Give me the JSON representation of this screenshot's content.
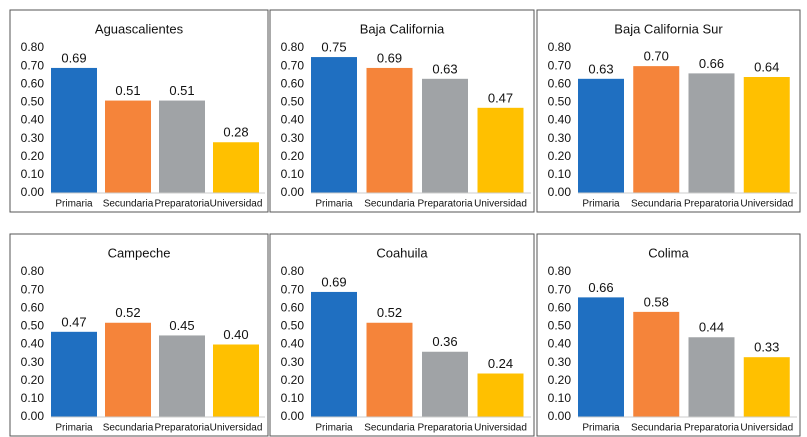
{
  "chart_data": [
    {
      "type": "bar",
      "title": "Aguascalientes",
      "categories": [
        "Primaria",
        "Secundaria",
        "Preparatoria",
        "Universidad"
      ],
      "values": [
        0.69,
        0.51,
        0.51,
        0.28
      ],
      "value_labels": [
        "0.69",
        "0.51",
        "0.51",
        "0.28"
      ],
      "colors": [
        "#1f6fc1",
        "#f5843a",
        "#a0a3a6",
        "#ffc000"
      ],
      "ylim": [
        0,
        0.8
      ],
      "yticks": [
        {
          "value": 0,
          "label": "0.00"
        },
        {
          "value": 0.1,
          "label": "0.10"
        },
        {
          "value": 0.2,
          "label": "0.20"
        },
        {
          "value": 0.3,
          "label": "0.30"
        },
        {
          "value": 0.4,
          "label": "0.40"
        },
        {
          "value": 0.5,
          "label": "0.50"
        },
        {
          "value": 0.6,
          "label": "0.60"
        },
        {
          "value": 0.7,
          "label": "0.70"
        },
        {
          "value": 0.8,
          "label": "0.80"
        }
      ]
    },
    {
      "type": "bar",
      "title": "Baja California",
      "categories": [
        "Primaria",
        "Secundaria",
        "Preparatoria",
        "Universidad"
      ],
      "values": [
        0.75,
        0.69,
        0.63,
        0.47
      ],
      "value_labels": [
        "0.75",
        "0.69",
        "0.63",
        "0.47"
      ],
      "colors": [
        "#1f6fc1",
        "#f5843a",
        "#a0a3a6",
        "#ffc000"
      ],
      "ylim": [
        0,
        0.8
      ],
      "yticks": [
        {
          "value": 0,
          "label": "0.00"
        },
        {
          "value": 0.1,
          "label": "0.10"
        },
        {
          "value": 0.2,
          "label": "0.20"
        },
        {
          "value": 0.3,
          "label": "0.30"
        },
        {
          "value": 0.4,
          "label": "0.40"
        },
        {
          "value": 0.5,
          "label": "0.50"
        },
        {
          "value": 0.6,
          "label": "0.60"
        },
        {
          "value": 0.7,
          "label": "0.70"
        },
        {
          "value": 0.8,
          "label": "0.80"
        }
      ]
    },
    {
      "type": "bar",
      "title": "Baja California Sur",
      "categories": [
        "Primaria",
        "Secundaria",
        "Preparatoria",
        "Universidad"
      ],
      "values": [
        0.63,
        0.7,
        0.66,
        0.64
      ],
      "value_labels": [
        "0.63",
        "0.70",
        "0.66",
        "0.64"
      ],
      "colors": [
        "#1f6fc1",
        "#f5843a",
        "#a0a3a6",
        "#ffc000"
      ],
      "ylim": [
        0,
        0.8
      ],
      "yticks": [
        {
          "value": 0,
          "label": "0.00"
        },
        {
          "value": 0.1,
          "label": "0.10"
        },
        {
          "value": 0.2,
          "label": "0.20"
        },
        {
          "value": 0.3,
          "label": "0.30"
        },
        {
          "value": 0.4,
          "label": "0.40"
        },
        {
          "value": 0.5,
          "label": "0.50"
        },
        {
          "value": 0.6,
          "label": "0.60"
        },
        {
          "value": 0.7,
          "label": "0.70"
        },
        {
          "value": 0.8,
          "label": "0.80"
        }
      ]
    },
    {
      "type": "bar",
      "title": "Campeche",
      "categories": [
        "Primaria",
        "Secundaria",
        "Preparatoria",
        "Universidad"
      ],
      "values": [
        0.47,
        0.52,
        0.45,
        0.4
      ],
      "value_labels": [
        "0.47",
        "0.52",
        "0.45",
        "0.40"
      ],
      "colors": [
        "#1f6fc1",
        "#f5843a",
        "#a0a3a6",
        "#ffc000"
      ],
      "ylim": [
        0,
        0.8
      ],
      "yticks": [
        {
          "value": 0,
          "label": "0.00"
        },
        {
          "value": 0.1,
          "label": "0.10"
        },
        {
          "value": 0.2,
          "label": "0.20"
        },
        {
          "value": 0.3,
          "label": "0.30"
        },
        {
          "value": 0.4,
          "label": "0.40"
        },
        {
          "value": 0.5,
          "label": "0.50"
        },
        {
          "value": 0.6,
          "label": "0.60"
        },
        {
          "value": 0.7,
          "label": "0.70"
        },
        {
          "value": 0.8,
          "label": "0.80"
        }
      ]
    },
    {
      "type": "bar",
      "title": "Coahuila",
      "categories": [
        "Primaria",
        "Secundaria",
        "Preparatoria",
        "Universidad"
      ],
      "values": [
        0.69,
        0.52,
        0.36,
        0.24
      ],
      "value_labels": [
        "0.69",
        "0.52",
        "0.36",
        "0.24"
      ],
      "colors": [
        "#1f6fc1",
        "#f5843a",
        "#a0a3a6",
        "#ffc000"
      ],
      "ylim": [
        0,
        0.8
      ],
      "yticks": [
        {
          "value": 0,
          "label": "0.00"
        },
        {
          "value": 0.1,
          "label": "0.10"
        },
        {
          "value": 0.2,
          "label": "0.20"
        },
        {
          "value": 0.3,
          "label": "0.30"
        },
        {
          "value": 0.4,
          "label": "0.40"
        },
        {
          "value": 0.5,
          "label": "0.50"
        },
        {
          "value": 0.6,
          "label": "0.60"
        },
        {
          "value": 0.7,
          "label": "0.70"
        },
        {
          "value": 0.8,
          "label": "0.80"
        }
      ]
    },
    {
      "type": "bar",
      "title": "Colima",
      "categories": [
        "Primaria",
        "Secundaria",
        "Preparatoria",
        "Universidad"
      ],
      "values": [
        0.66,
        0.58,
        0.44,
        0.33
      ],
      "value_labels": [
        "0.66",
        "0.58",
        "0.44",
        "0.33"
      ],
      "colors": [
        "#1f6fc1",
        "#f5843a",
        "#a0a3a6",
        "#ffc000"
      ],
      "ylim": [
        0,
        0.8
      ],
      "yticks": [
        {
          "value": 0,
          "label": "0.00"
        },
        {
          "value": 0.1,
          "label": "0.10"
        },
        {
          "value": 0.2,
          "label": "0.20"
        },
        {
          "value": 0.3,
          "label": "0.30"
        },
        {
          "value": 0.4,
          "label": "0.40"
        },
        {
          "value": 0.5,
          "label": "0.50"
        },
        {
          "value": 0.6,
          "label": "0.60"
        },
        {
          "value": 0.7,
          "label": "0.70"
        },
        {
          "value": 0.8,
          "label": "0.80"
        }
      ]
    }
  ]
}
